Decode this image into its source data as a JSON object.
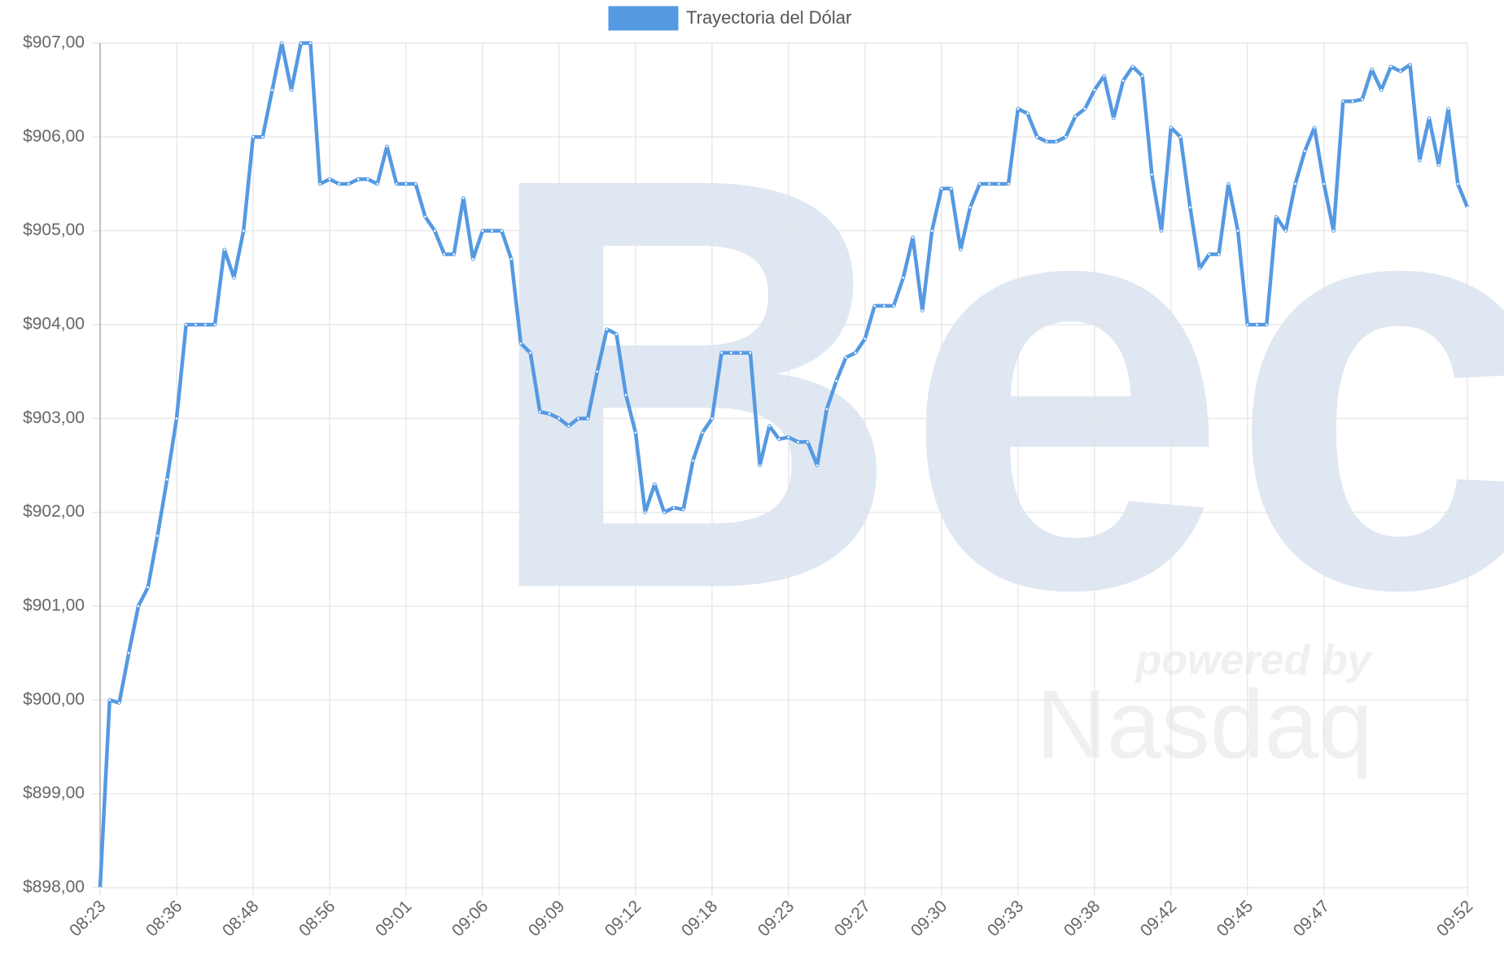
{
  "chart_data": {
    "type": "line",
    "categories": [
      "08:23",
      null,
      null,
      null,
      null,
      null,
      null,
      null,
      "08:36",
      null,
      null,
      null,
      null,
      null,
      null,
      null,
      "08:48",
      null,
      null,
      null,
      null,
      null,
      null,
      null,
      "08:56",
      null,
      null,
      null,
      null,
      null,
      null,
      null,
      "09:01",
      null,
      null,
      null,
      null,
      null,
      null,
      null,
      "09:06",
      null,
      null,
      null,
      null,
      null,
      null,
      null,
      "09:09",
      null,
      null,
      null,
      null,
      null,
      null,
      null,
      "09:12",
      null,
      null,
      null,
      null,
      null,
      null,
      null,
      "09:18",
      null,
      null,
      null,
      null,
      null,
      null,
      null,
      "09:23",
      null,
      null,
      null,
      null,
      null,
      null,
      null,
      "09:27",
      null,
      null,
      null,
      null,
      null,
      null,
      null,
      "09:30",
      null,
      null,
      null,
      null,
      null,
      null,
      null,
      "09:33",
      null,
      null,
      null,
      null,
      null,
      null,
      null,
      "09:38",
      null,
      null,
      null,
      null,
      null,
      null,
      null,
      "09:42",
      null,
      null,
      null,
      null,
      null,
      null,
      null,
      "09:45",
      null,
      null,
      null,
      null,
      null,
      null,
      null,
      "09:47",
      null,
      null,
      null,
      null,
      null,
      null,
      null,
      null,
      null,
      null,
      null,
      null,
      null,
      null,
      "09:52"
    ],
    "series": [
      {
        "name": "Trayectoria del Dólar",
        "color": "#5599e2",
        "values": [
          898.0,
          900.0,
          899.97,
          900.5,
          901.0,
          901.2,
          901.75,
          902.35,
          903.0,
          904.0,
          904.0,
          904.0,
          904.0,
          904.8,
          904.5,
          905.0,
          906.0,
          906.0,
          906.5,
          907.0,
          906.5,
          907.0,
          907.0,
          905.5,
          905.55,
          905.5,
          905.5,
          905.55,
          905.55,
          905.5,
          905.9,
          905.5,
          905.5,
          905.5,
          905.15,
          905.0,
          904.75,
          904.75,
          905.35,
          904.7,
          905.0,
          905.0,
          905.0,
          904.7,
          903.8,
          903.7,
          903.07,
          903.05,
          903.0,
          902.92,
          903.0,
          903.0,
          903.5,
          903.95,
          903.9,
          903.25,
          902.85,
          902.0,
          902.3,
          902.0,
          902.05,
          902.03,
          902.55,
          902.85,
          903.0,
          903.7,
          903.7,
          903.7,
          903.7,
          902.5,
          902.92,
          902.78,
          902.8,
          902.75,
          902.75,
          902.5,
          903.1,
          903.4,
          903.65,
          903.7,
          903.85,
          904.2,
          904.2,
          904.2,
          904.5,
          904.93,
          904.15,
          905.0,
          905.45,
          905.45,
          904.8,
          905.25,
          905.5,
          905.5,
          905.5,
          905.5,
          906.3,
          906.25,
          906.0,
          905.95,
          905.95,
          906.0,
          906.22,
          906.3,
          906.5,
          906.65,
          906.2,
          906.6,
          906.75,
          906.65,
          905.6,
          905.0,
          906.1,
          906.0,
          905.25,
          904.6,
          904.75,
          904.75,
          905.5,
          905.0,
          904.0,
          904.0,
          904.0,
          905.15,
          905.0,
          905.5,
          905.85,
          906.1,
          905.5,
          905.0,
          906.38,
          906.38,
          906.4,
          906.72,
          906.5,
          906.75,
          906.7,
          906.77,
          905.75,
          906.2,
          905.7,
          906.3,
          905.5,
          905.25
        ]
      }
    ],
    "ylim": [
      898,
      907
    ],
    "yticks": [
      {
        "value": 898,
        "label": "$898,00"
      },
      {
        "value": 899,
        "label": "$899,00"
      },
      {
        "value": 900,
        "label": "$900,00"
      },
      {
        "value": 901,
        "label": "$901,00"
      },
      {
        "value": 902,
        "label": "$902,00"
      },
      {
        "value": 903,
        "label": "$903,00"
      },
      {
        "value": 904,
        "label": "$904,00"
      },
      {
        "value": 905,
        "label": "$905,00"
      },
      {
        "value": 906,
        "label": "$906,00"
      },
      {
        "value": 907,
        "label": "$907,00"
      }
    ],
    "grid": true,
    "legend": "top"
  },
  "watermark": {
    "brand": "Bec",
    "tagline": "powered by",
    "partner": "Nasdaq"
  }
}
